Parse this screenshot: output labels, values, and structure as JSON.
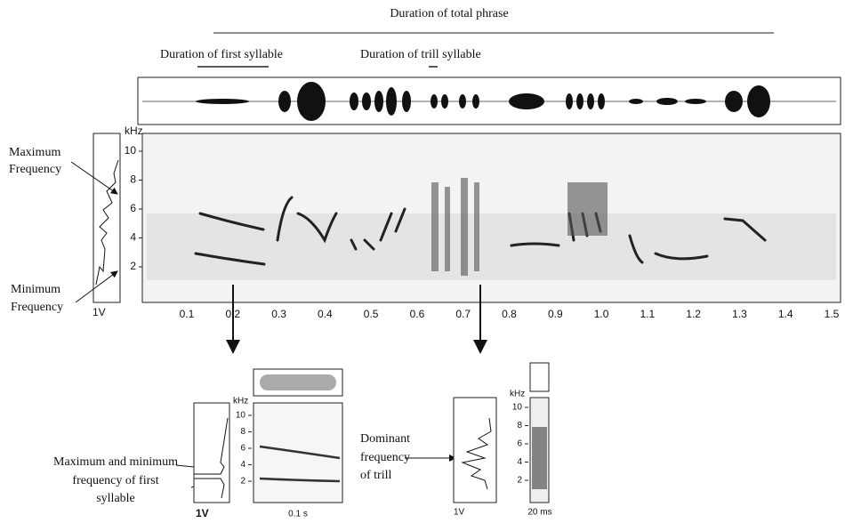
{
  "header": {
    "total_phrase": "Duration of total phrase",
    "first_syllable": "Duration of first syllable",
    "trill_syllable": "Duration of trill syllable"
  },
  "main_panel": {
    "max_label": [
      "Maximum",
      "Frequency"
    ],
    "min_label": [
      "Minimum",
      "Frequency"
    ],
    "y_unit": "kHz",
    "amplitude": "1V",
    "yticks": [
      "2",
      "4",
      "6",
      "8",
      "10"
    ],
    "xticks": [
      "0.1",
      "0.2",
      "0.3",
      "0.4",
      "0.5",
      "0.6",
      "0.7",
      "0.8",
      "0.9",
      "1.0",
      "1.1",
      "1.2",
      "1.3",
      "1.4",
      "1.5"
    ]
  },
  "first_syllable_panel": {
    "label": [
      "Maximum and minimum",
      "frequency of first",
      "syllable"
    ],
    "y_unit": "kHz",
    "yticks": [
      "2",
      "4",
      "6",
      "8",
      "10"
    ],
    "amplitude": "1V",
    "time_scale": "0.1 s"
  },
  "trill_panel": {
    "label": [
      "Dominant",
      "frequency",
      "of trill"
    ],
    "y_unit": "kHz",
    "yticks": [
      "2",
      "4",
      "6",
      "8",
      "10"
    ],
    "amplitude": "1V",
    "time_scale": "20 ms"
  }
}
